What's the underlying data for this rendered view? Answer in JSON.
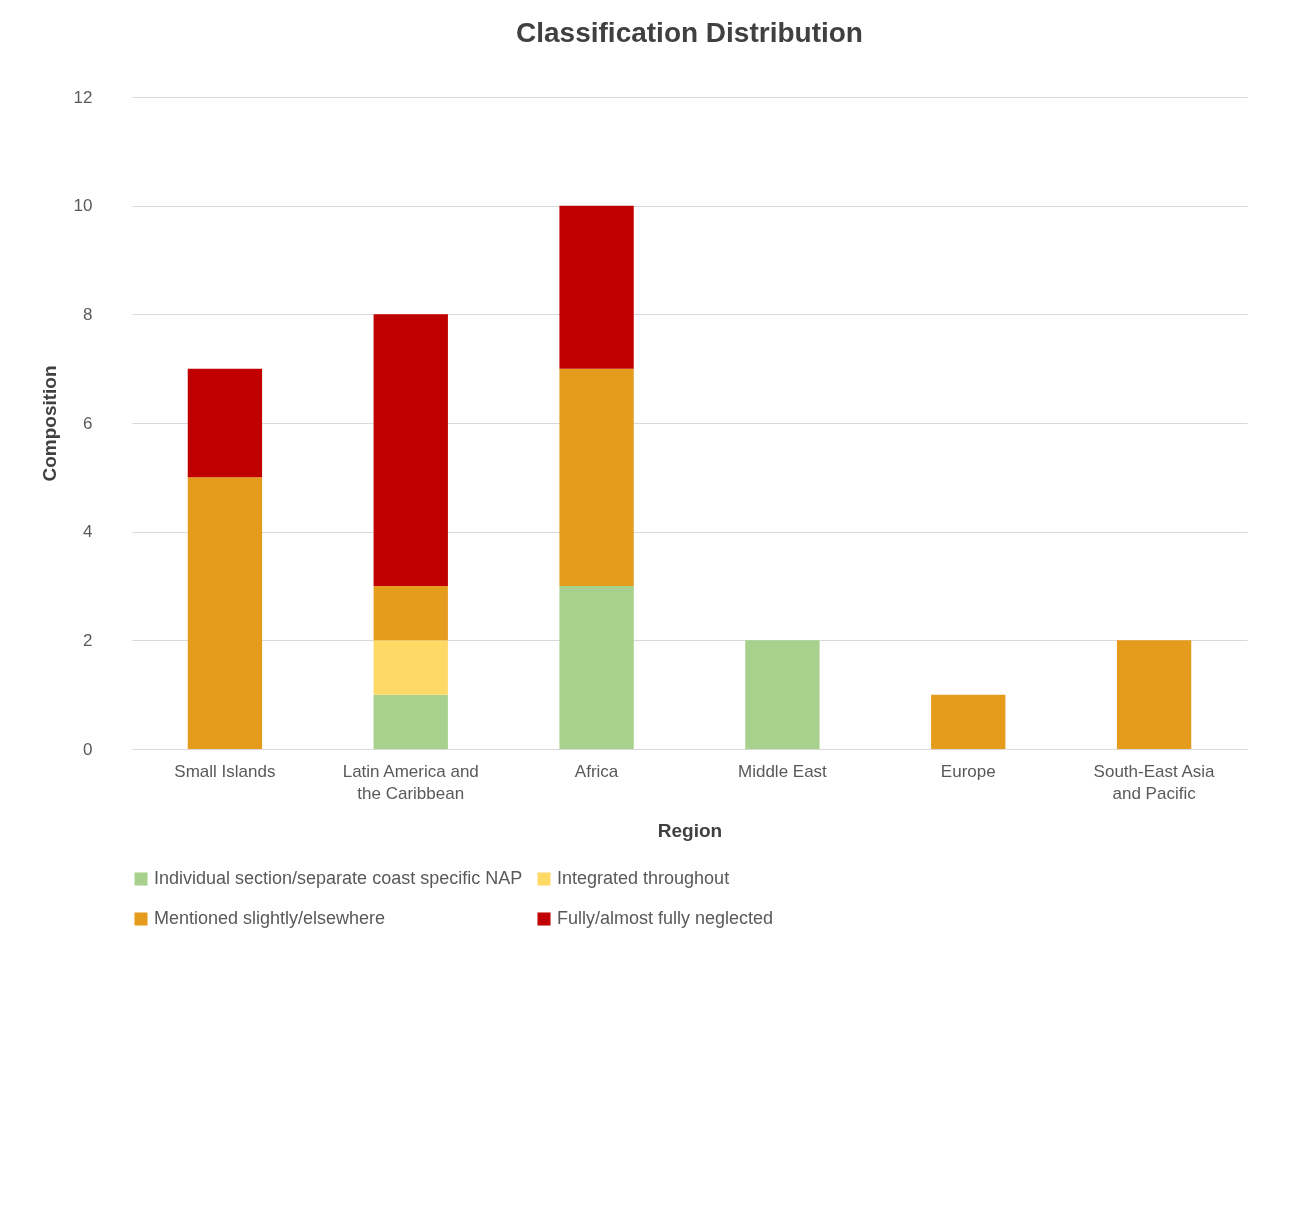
{
  "chart_data": {
    "type": "bar",
    "title": "Classification Distribution",
    "xlabel": "Region",
    "ylabel": "Composition",
    "categories": [
      "Small Islands",
      "Latin America and the Caribbean",
      "Africa",
      "Middle East",
      "Europe",
      "South-East Asia and Pacific"
    ],
    "series": [
      {
        "name": "Individual section/separate coast specific NAP",
        "color": "#a9d18e",
        "values": [
          0,
          1,
          3,
          2,
          0,
          0
        ]
      },
      {
        "name": "Integrated throughout",
        "color": "#ffd966",
        "values": [
          0,
          1,
          0,
          0,
          0,
          0
        ]
      },
      {
        "name": "Mentioned slightly/elsewhere",
        "color": "#e59c1c",
        "values": [
          5,
          1,
          4,
          0,
          1,
          2
        ]
      },
      {
        "name": "Fully/almost fully neglected",
        "color": "#c00000",
        "values": [
          2,
          5,
          3,
          0,
          0,
          0
        ]
      }
    ],
    "stacked": true,
    "ylim": [
      0,
      12
    ],
    "yticks": [
      0,
      2,
      4,
      6,
      8,
      10,
      12
    ],
    "grid": "y",
    "legend": "bottom"
  }
}
